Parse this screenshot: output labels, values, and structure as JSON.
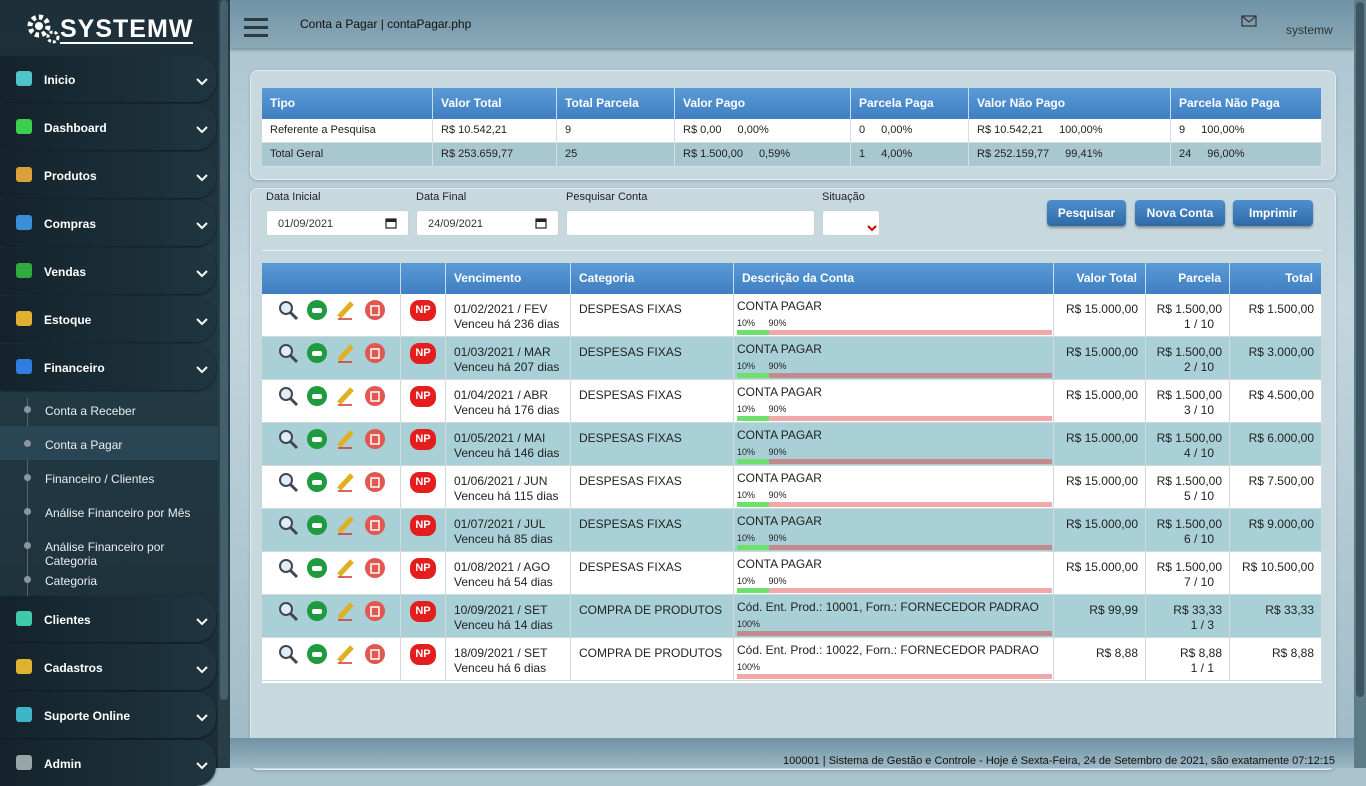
{
  "brand": "SYSTEMW",
  "sidebar": {
    "menu": [
      {
        "label": "Inicio",
        "color": "#4fc3c7"
      },
      {
        "label": "Dashboard",
        "color": "#3ccf4e"
      },
      {
        "label": "Produtos",
        "color": "#d9a23a"
      },
      {
        "label": "Compras",
        "color": "#3a8fd9"
      },
      {
        "label": "Vendas",
        "color": "#2eaa3f"
      },
      {
        "label": "Estoque",
        "color": "#e0b030"
      },
      {
        "label": "Financeiro",
        "color": "#2f7fe0",
        "submenu": [
          "Conta a Receber",
          "Conta a Pagar",
          "Financeiro / Clientes",
          "Análise Financeiro por Mês",
          "Análise Financeiro por Categoria",
          "Categoria"
        ],
        "active_submenu": 1
      },
      {
        "label": "Clientes",
        "color": "#3fc9a8"
      },
      {
        "label": "Cadastros",
        "color": "#e0b030"
      },
      {
        "label": "Suporte Online",
        "color": "#3fb5c9"
      },
      {
        "label": "Admin",
        "color": "#9aa5aa"
      }
    ]
  },
  "header": {
    "breadcrumb": "Conta a Pagar | contaPagar.php",
    "user": "systemw"
  },
  "summary": {
    "headers": [
      "Tipo",
      "Valor Total",
      "Total Parcela",
      "Valor Pago",
      "Parcela Paga",
      "Valor Não Pago",
      "Parcela Não Paga"
    ],
    "rows": [
      [
        "Referente a Pesquisa",
        "R$ 10.542,21",
        "9",
        [
          "R$ 0,00",
          "0,00%"
        ],
        [
          "0",
          "0,00%"
        ],
        [
          "R$ 10.542,21",
          "100,00%"
        ],
        [
          "9",
          "100,00%"
        ]
      ],
      [
        "Total Geral",
        "R$ 253.659,77",
        "25",
        [
          "R$ 1.500,00",
          "0,59%"
        ],
        [
          "1",
          "4,00%"
        ],
        [
          "R$ 252.159,77",
          "99,41%"
        ],
        [
          "24",
          "96,00%"
        ]
      ]
    ]
  },
  "filters": {
    "fields": [
      {
        "label": "Data Inicial",
        "value": "01/09/2021"
      },
      {
        "label": "Data Final",
        "value": "24/09/2021"
      },
      {
        "label": "Pesquisar Conta"
      },
      {
        "label": "Situação"
      }
    ],
    "buttons": [
      "Pesquisar",
      "Nova Conta",
      "Imprimir"
    ]
  },
  "table": {
    "headers": [
      "Vencimento",
      "Categoria",
      "Descrição da Conta",
      "Valor Total",
      "Parcela",
      "Total"
    ],
    "rows": [
      {
        "vencimento": "01/02/2021 / FEV",
        "atraso": "Venceu há 236 dias",
        "status": "NP",
        "categoria": "DESPESAS FIXAS",
        "descricao": "CONTA PAGAR",
        "progress": [
          {
            "value": 10,
            "label": "10%",
            "color": "#6ee06e"
          },
          {
            "value": 90,
            "label": "90%",
            "color": "#f0a8a8"
          }
        ],
        "valor_total": "R$ 15.000,00",
        "parcela": "R$ 1.500,00",
        "parcela_num": "1 / 10",
        "total": "R$ 1.500,00"
      },
      {
        "vencimento": "01/03/2021 / MAR",
        "atraso": "Venceu há 207 dias",
        "status": "NP",
        "categoria": "DESPESAS FIXAS",
        "descricao": "CONTA PAGAR",
        "progress": [
          {
            "value": 10,
            "label": "10%",
            "color": "#6ee06e"
          },
          {
            "value": 90,
            "label": "90%",
            "color": "#c08a8e"
          }
        ],
        "valor_total": "R$ 15.000,00",
        "parcela": "R$ 1.500,00",
        "parcela_num": "2 / 10",
        "total": "R$ 3.000,00"
      },
      {
        "vencimento": "01/04/2021 / ABR",
        "atraso": "Venceu há 176 dias",
        "status": "NP",
        "categoria": "DESPESAS FIXAS",
        "descricao": "CONTA PAGAR",
        "progress": [
          {
            "value": 10,
            "label": "10%",
            "color": "#6ee06e"
          },
          {
            "value": 90,
            "label": "90%",
            "color": "#f0a8a8"
          }
        ],
        "valor_total": "R$ 15.000,00",
        "parcela": "R$ 1.500,00",
        "parcela_num": "3 / 10",
        "total": "R$ 4.500,00"
      },
      {
        "vencimento": "01/05/2021 / MAI",
        "atraso": "Venceu há 146 dias",
        "status": "NP",
        "categoria": "DESPESAS FIXAS",
        "descricao": "CONTA PAGAR",
        "progress": [
          {
            "value": 10,
            "label": "10%",
            "color": "#6ee06e"
          },
          {
            "value": 90,
            "label": "90%",
            "color": "#c08a8e"
          }
        ],
        "valor_total": "R$ 15.000,00",
        "parcela": "R$ 1.500,00",
        "parcela_num": "4 / 10",
        "total": "R$ 6.000,00"
      },
      {
        "vencimento": "01/06/2021 / JUN",
        "atraso": "Venceu há 115 dias",
        "status": "NP",
        "categoria": "DESPESAS FIXAS",
        "descricao": "CONTA PAGAR",
        "progress": [
          {
            "value": 10,
            "label": "10%",
            "color": "#6ee06e"
          },
          {
            "value": 90,
            "label": "90%",
            "color": "#f0a8a8"
          }
        ],
        "valor_total": "R$ 15.000,00",
        "parcela": "R$ 1.500,00",
        "parcela_num": "5 / 10",
        "total": "R$ 7.500,00"
      },
      {
        "vencimento": "01/07/2021 / JUL",
        "atraso": "Venceu há 85 dias",
        "status": "NP",
        "categoria": "DESPESAS FIXAS",
        "descricao": "CONTA PAGAR",
        "progress": [
          {
            "value": 10,
            "label": "10%",
            "color": "#6ee06e"
          },
          {
            "value": 90,
            "label": "90%",
            "color": "#c08a8e"
          }
        ],
        "valor_total": "R$ 15.000,00",
        "parcela": "R$ 1.500,00",
        "parcela_num": "6 / 10",
        "total": "R$ 9.000,00"
      },
      {
        "vencimento": "01/08/2021 / AGO",
        "atraso": "Venceu há 54 dias",
        "status": "NP",
        "categoria": "DESPESAS FIXAS",
        "descricao": "CONTA PAGAR",
        "progress": [
          {
            "value": 10,
            "label": "10%",
            "color": "#6ee06e"
          },
          {
            "value": 90,
            "label": "90%",
            "color": "#f0a8a8"
          }
        ],
        "valor_total": "R$ 15.000,00",
        "parcela": "R$ 1.500,00",
        "parcela_num": "7 / 10",
        "total": "R$ 10.500,00"
      },
      {
        "vencimento": "10/09/2021 / SET",
        "atraso": "Venceu há 14 dias",
        "status": "NP",
        "categoria": "COMPRA DE PRODUTOS",
        "descricao": "Cód. Ent. Prod.: 10001, Forn.: FORNECEDOR PADRAO",
        "progress": [
          {
            "value": 100,
            "label": "100%",
            "color": "#c08a8e"
          }
        ],
        "valor_total": "R$ 99,99",
        "parcela": "R$ 33,33",
        "parcela_num": "1 / 3",
        "total": "R$ 33,33"
      },
      {
        "vencimento": "18/09/2021 / SET",
        "atraso": "Venceu há 6 dias",
        "status": "NP",
        "categoria": "COMPRA DE PRODUTOS",
        "descricao": "Cód. Ent. Prod.: 10022, Forn.: FORNECEDOR PADRAO",
        "progress": [
          {
            "value": 100,
            "label": "100%",
            "color": "#f0a8a8"
          }
        ],
        "valor_total": "R$ 8,88",
        "parcela": "R$ 8,88",
        "parcela_num": "1 / 1",
        "total": "R$ 8,88"
      }
    ]
  },
  "footer": "100001 | Sistema de Gestão e Controle - Hoje é Sexta-Feira, 24 de Setembro de 2021, são exatamente 07:12:15"
}
